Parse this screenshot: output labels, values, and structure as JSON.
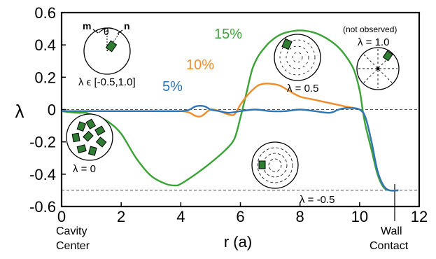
{
  "chart_data": {
    "type": "line",
    "xlabel": "r (a)",
    "ylabel": "λ",
    "xlim": [
      0,
      12
    ],
    "ylim": [
      -0.6,
      0.6
    ],
    "xticks": [
      "0",
      "2",
      "4",
      "6",
      "8",
      "10",
      "12"
    ],
    "yticks": [
      "0.6",
      "0.4",
      "0.2",
      "0",
      "-0.2",
      "-0.4",
      "-0.6"
    ],
    "reference_lines": [
      0,
      -0.5
    ],
    "grid": false,
    "legend": "none",
    "series": [
      {
        "name": "5%",
        "color": "#2e75b6",
        "x": [
          0,
          0.5,
          1,
          2,
          3,
          4,
          4.3,
          4.5,
          4.8,
          5.0,
          5.3,
          5.6,
          6.0,
          6.5,
          7.0,
          7.5,
          8.0,
          8.5,
          9.0,
          9.3,
          9.6,
          10.0,
          10.2,
          10.4,
          10.6,
          10.8,
          11.0,
          11.3
        ],
        "y": [
          -0.01,
          -0.01,
          -0.01,
          -0.01,
          -0.01,
          -0.01,
          0.0,
          0.02,
          0.02,
          0.0,
          -0.01,
          -0.02,
          -0.01,
          0.0,
          -0.01,
          -0.01,
          0.0,
          -0.01,
          -0.02,
          0.0,
          0.01,
          0.0,
          -0.05,
          -0.2,
          -0.38,
          -0.47,
          -0.5,
          -0.5
        ]
      },
      {
        "name": "10%",
        "color": "#f08c2a",
        "x": [
          0,
          0.5,
          1,
          2,
          3,
          4,
          4.3,
          4.5,
          4.7,
          5.0,
          5.3,
          5.6,
          5.8,
          6.0,
          6.2,
          6.4,
          6.6,
          6.8,
          7.0,
          7.3,
          7.6,
          8.0,
          8.5,
          9.0,
          9.5,
          9.8,
          10.0,
          10.2,
          10.4,
          10.6,
          10.8,
          11.0,
          11.3
        ],
        "y": [
          -0.01,
          -0.01,
          -0.01,
          -0.01,
          -0.01,
          -0.01,
          -0.02,
          -0.04,
          -0.04,
          0.0,
          -0.01,
          -0.03,
          -0.03,
          0.03,
          0.08,
          0.12,
          0.15,
          0.16,
          0.16,
          0.15,
          0.12,
          0.08,
          0.06,
          0.04,
          0.02,
          0.01,
          0.0,
          -0.05,
          -0.2,
          -0.38,
          -0.47,
          -0.5,
          -0.5
        ]
      },
      {
        "name": "15%",
        "color": "#3aa335",
        "x": [
          0,
          0.5,
          0.8,
          1.0,
          1.3,
          1.6,
          2.0,
          2.5,
          3.0,
          3.5,
          3.8,
          4.0,
          4.5,
          5.0,
          5.5,
          5.8,
          6.0,
          6.2,
          6.4,
          6.6,
          6.8,
          7.0,
          7.3,
          7.6,
          8.0,
          8.4,
          8.8,
          9.2,
          9.5,
          9.8,
          10.0,
          10.1,
          10.2,
          10.4,
          10.6,
          10.8,
          11.0,
          11.3
        ],
        "y": [
          -0.01,
          -0.02,
          -0.02,
          -0.03,
          -0.05,
          -0.08,
          -0.15,
          -0.3,
          -0.41,
          -0.46,
          -0.47,
          -0.46,
          -0.4,
          -0.33,
          -0.25,
          -0.18,
          -0.05,
          0.1,
          0.25,
          0.33,
          0.38,
          0.42,
          0.46,
          0.48,
          0.49,
          0.48,
          0.45,
          0.4,
          0.34,
          0.25,
          0.12,
          0.0,
          -0.1,
          -0.25,
          -0.4,
          -0.48,
          -0.5,
          -0.5
        ]
      }
    ],
    "annotations": {
      "left_axis_label_top": "Cavity",
      "left_axis_label_bottom": "Center",
      "right_axis_label_top": "Wall",
      "right_axis_label_bottom": "Contact",
      "inset_m": "m",
      "inset_theta": "θ",
      "inset_n": "n",
      "inset_range": "λ ϵ [-0.5,1.0]",
      "lambda_zero": "λ = 0",
      "lambda_half": "λ = 0.5",
      "lambda_one": "λ = 1.0",
      "not_observed": "(not observed)",
      "lambda_neg_half": "λ = -0.5"
    }
  }
}
